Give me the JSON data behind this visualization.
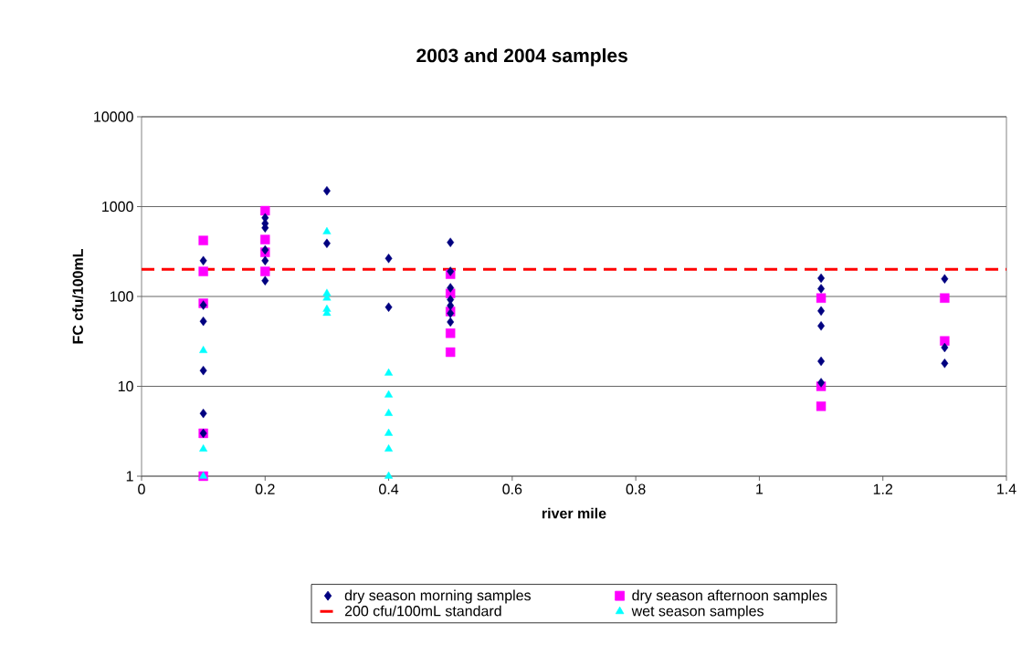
{
  "chart_data": {
    "type": "scatter",
    "title": "2003 and 2004 samples",
    "xlabel": "river mile",
    "ylabel": "FC cfu/100mL",
    "log": "y",
    "grid": "y",
    "legend": "bottom",
    "xlim": [
      0,
      1.4
    ],
    "xticks": [
      0,
      0.2,
      0.4,
      0.6,
      0.8,
      1,
      1.2,
      1.4
    ],
    "ylim": [
      1,
      10000
    ],
    "yticks": [
      1,
      10,
      100,
      1000,
      10000
    ],
    "series": [
      {
        "name": "dry season morning samples",
        "color": "#000080",
        "marker": "diamond",
        "x": [
          0.1,
          0.1,
          0.1,
          0.1,
          0.1,
          0.1,
          0.2,
          0.2,
          0.2,
          0.2,
          0.2,
          0.2,
          0.3,
          0.3,
          0.4,
          0.4,
          0.5,
          0.5,
          0.5,
          0.5,
          0.5,
          0.5,
          0.5,
          1.1,
          1.1,
          1.1,
          1.1,
          1.1,
          1.1,
          1.3,
          1.3,
          1.3
        ],
        "values": [
          250,
          80,
          53,
          15,
          5,
          3,
          750,
          650,
          580,
          330,
          250,
          150,
          1500,
          390,
          265,
          76,
          400,
          190,
          125,
          92,
          79,
          65,
          52,
          160,
          122,
          69,
          47,
          19,
          11,
          157,
          27,
          18
        ]
      },
      {
        "name": "dry season afternoon samples",
        "color": "#ff00ff",
        "marker": "square",
        "x": [
          0.1,
          0.1,
          0.1,
          0.1,
          0.1,
          0.2,
          0.2,
          0.2,
          0.2,
          0.5,
          0.5,
          0.5,
          0.5,
          0.5,
          1.1,
          1.1,
          1.1,
          1.3,
          1.3
        ],
        "values": [
          420,
          190,
          84,
          3,
          1,
          900,
          430,
          310,
          190,
          177,
          108,
          68,
          39,
          24,
          96,
          10,
          6,
          96,
          32
        ]
      },
      {
        "name": "wet season samples",
        "color": "#00ffff",
        "marker": "triangle",
        "x": [
          0.1,
          0.1,
          0.1,
          0.3,
          0.3,
          0.3,
          0.3,
          0.3,
          0.4,
          0.4,
          0.4,
          0.4,
          0.4,
          0.4
        ],
        "values": [
          25,
          2,
          1,
          525,
          108,
          96,
          72,
          65,
          14,
          8,
          5,
          3,
          2,
          1
        ]
      }
    ],
    "ref_lines": [
      {
        "axis": "y",
        "value": 200,
        "label": "200 cfu/100mL standard",
        "color": "#ff0000",
        "line_style": "dashed"
      }
    ]
  }
}
